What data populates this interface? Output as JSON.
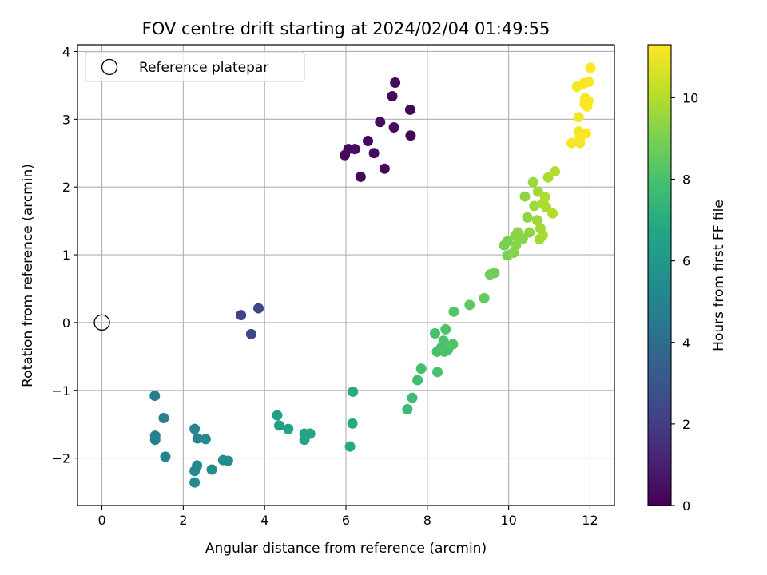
{
  "chart_data": {
    "type": "scatter",
    "title": "FOV centre drift starting at 2024/02/04 01:49:55",
    "xlabel": "Angular distance from reference (arcmin)",
    "ylabel": "Rotation from reference (arcmin)",
    "xlim": [
      -0.6,
      12.6
    ],
    "ylim": [
      -2.7,
      4.1
    ],
    "x_ticks": [
      0,
      2,
      4,
      6,
      8,
      10,
      12
    ],
    "y_ticks": [
      -2,
      -1,
      0,
      1,
      2,
      3,
      4
    ],
    "grid": true,
    "legend": {
      "position": "top-left",
      "entries": [
        "Reference platepar"
      ]
    },
    "reference_point": {
      "name": "Reference platepar",
      "x": 0,
      "y": 0,
      "marker": "open-circle"
    },
    "colorbar": {
      "label": "Hours from first FF file",
      "range": [
        0,
        11.3
      ],
      "ticks": [
        0,
        2,
        4,
        6,
        8,
        10
      ],
      "colormap": "viridis"
    },
    "points": [
      {
        "x": 5.97,
        "y": 2.47,
        "c": 0.2
      },
      {
        "x": 6.06,
        "y": 2.56,
        "c": 0.3
      },
      {
        "x": 6.22,
        "y": 2.56,
        "c": 0.4
      },
      {
        "x": 6.36,
        "y": 2.15,
        "c": 0.3
      },
      {
        "x": 6.54,
        "y": 2.68,
        "c": 0.2
      },
      {
        "x": 6.69,
        "y": 2.5,
        "c": 0.3
      },
      {
        "x": 6.84,
        "y": 2.96,
        "c": 0.4
      },
      {
        "x": 6.95,
        "y": 2.27,
        "c": 0.3
      },
      {
        "x": 7.14,
        "y": 3.34,
        "c": 0.2
      },
      {
        "x": 7.18,
        "y": 2.88,
        "c": 0.4
      },
      {
        "x": 7.21,
        "y": 3.54,
        "c": 0.3
      },
      {
        "x": 7.58,
        "y": 3.14,
        "c": 0.2
      },
      {
        "x": 7.59,
        "y": 2.76,
        "c": 0.1
      },
      {
        "x": 3.42,
        "y": 0.11,
        "c": 2.2
      },
      {
        "x": 3.85,
        "y": 0.21,
        "c": 2.3
      },
      {
        "x": 3.67,
        "y": -0.17,
        "c": 2.4
      },
      {
        "x": 1.3,
        "y": -1.08,
        "c": 4.8
      },
      {
        "x": 1.31,
        "y": -1.67,
        "c": 4.9
      },
      {
        "x": 1.31,
        "y": -1.73,
        "c": 4.9
      },
      {
        "x": 1.52,
        "y": -1.41,
        "c": 5.0
      },
      {
        "x": 1.56,
        "y": -1.98,
        "c": 5.0
      },
      {
        "x": 2.28,
        "y": -1.57,
        "c": 5.2
      },
      {
        "x": 2.35,
        "y": -1.71,
        "c": 5.2
      },
      {
        "x": 2.55,
        "y": -1.72,
        "c": 5.3
      },
      {
        "x": 2.28,
        "y": -2.19,
        "c": 5.3
      },
      {
        "x": 2.34,
        "y": -2.11,
        "c": 5.3
      },
      {
        "x": 2.28,
        "y": -2.36,
        "c": 5.4
      },
      {
        "x": 2.7,
        "y": -2.17,
        "c": 5.5
      },
      {
        "x": 2.98,
        "y": -2.03,
        "c": 5.6
      },
      {
        "x": 3.1,
        "y": -2.04,
        "c": 5.6
      },
      {
        "x": 4.31,
        "y": -1.37,
        "c": 6.4
      },
      {
        "x": 4.36,
        "y": -1.52,
        "c": 6.4
      },
      {
        "x": 4.58,
        "y": -1.57,
        "c": 6.5
      },
      {
        "x": 4.98,
        "y": -1.64,
        "c": 6.6
      },
      {
        "x": 4.98,
        "y": -1.73,
        "c": 6.6
      },
      {
        "x": 5.12,
        "y": -1.64,
        "c": 6.7
      },
      {
        "x": 6.17,
        "y": -1.02,
        "c": 6.9
      },
      {
        "x": 6.16,
        "y": -1.49,
        "c": 6.9
      },
      {
        "x": 6.1,
        "y": -1.83,
        "c": 6.9
      },
      {
        "x": 7.51,
        "y": -1.28,
        "c": 7.6
      },
      {
        "x": 7.63,
        "y": -1.11,
        "c": 7.7
      },
      {
        "x": 7.76,
        "y": -0.85,
        "c": 7.8
      },
      {
        "x": 7.85,
        "y": -0.68,
        "c": 7.9
      },
      {
        "x": 8.19,
        "y": -0.16,
        "c": 8.0
      },
      {
        "x": 8.24,
        "y": -0.43,
        "c": 8.0
      },
      {
        "x": 8.25,
        "y": -0.73,
        "c": 8.0
      },
      {
        "x": 8.34,
        "y": -0.37,
        "c": 8.0
      },
      {
        "x": 8.4,
        "y": -0.27,
        "c": 8.1
      },
      {
        "x": 8.45,
        "y": -0.1,
        "c": 8.1
      },
      {
        "x": 8.42,
        "y": -0.43,
        "c": 8.1
      },
      {
        "x": 8.51,
        "y": -0.4,
        "c": 8.1
      },
      {
        "x": 8.63,
        "y": -0.32,
        "c": 8.2
      },
      {
        "x": 8.65,
        "y": 0.16,
        "c": 8.3
      },
      {
        "x": 9.04,
        "y": 0.26,
        "c": 8.5
      },
      {
        "x": 9.4,
        "y": 0.36,
        "c": 8.6
      },
      {
        "x": 9.54,
        "y": 0.71,
        "c": 8.8
      },
      {
        "x": 9.65,
        "y": 0.73,
        "c": 8.8
      },
      {
        "x": 9.89,
        "y": 1.14,
        "c": 9.0
      },
      {
        "x": 9.97,
        "y": 0.99,
        "c": 9.0
      },
      {
        "x": 9.97,
        "y": 1.2,
        "c": 9.0
      },
      {
        "x": 10.12,
        "y": 1.03,
        "c": 9.2
      },
      {
        "x": 10.16,
        "y": 1.28,
        "c": 9.3
      },
      {
        "x": 10.18,
        "y": 1.14,
        "c": 9.3
      },
      {
        "x": 10.22,
        "y": 1.33,
        "c": 9.3
      },
      {
        "x": 10.35,
        "y": 1.24,
        "c": 9.3
      },
      {
        "x": 10.4,
        "y": 1.86,
        "c": 9.4
      },
      {
        "x": 10.46,
        "y": 1.55,
        "c": 9.4
      },
      {
        "x": 10.51,
        "y": 1.33,
        "c": 9.4
      },
      {
        "x": 10.6,
        "y": 2.07,
        "c": 9.6
      },
      {
        "x": 10.63,
        "y": 1.72,
        "c": 9.6
      },
      {
        "x": 10.7,
        "y": 1.51,
        "c": 9.6
      },
      {
        "x": 10.72,
        "y": 1.93,
        "c": 9.7
      },
      {
        "x": 10.78,
        "y": 1.39,
        "c": 9.7
      },
      {
        "x": 10.76,
        "y": 1.23,
        "c": 9.7
      },
      {
        "x": 10.84,
        "y": 1.29,
        "c": 9.8
      },
      {
        "x": 10.85,
        "y": 1.76,
        "c": 9.8
      },
      {
        "x": 10.9,
        "y": 1.85,
        "c": 9.9
      },
      {
        "x": 10.92,
        "y": 1.7,
        "c": 9.9
      },
      {
        "x": 10.97,
        "y": 2.14,
        "c": 9.9
      },
      {
        "x": 11.08,
        "y": 1.61,
        "c": 10.0
      },
      {
        "x": 11.14,
        "y": 2.23,
        "c": 10.0
      },
      {
        "x": 11.55,
        "y": 2.65,
        "c": 11.1
      },
      {
        "x": 11.68,
        "y": 3.48,
        "c": 11.1
      },
      {
        "x": 11.72,
        "y": 3.03,
        "c": 11.1
      },
      {
        "x": 11.72,
        "y": 2.82,
        "c": 11.1
      },
      {
        "x": 11.75,
        "y": 2.65,
        "c": 11.2
      },
      {
        "x": 11.76,
        "y": 2.73,
        "c": 11.2
      },
      {
        "x": 11.85,
        "y": 3.53,
        "c": 11.2
      },
      {
        "x": 11.87,
        "y": 3.23,
        "c": 11.2
      },
      {
        "x": 11.88,
        "y": 3.31,
        "c": 11.2
      },
      {
        "x": 11.9,
        "y": 2.79,
        "c": 11.3
      },
      {
        "x": 11.93,
        "y": 3.19,
        "c": 11.3
      },
      {
        "x": 11.96,
        "y": 3.27,
        "c": 11.3
      },
      {
        "x": 11.97,
        "y": 3.55,
        "c": 11.3
      },
      {
        "x": 12.01,
        "y": 3.76,
        "c": 11.3
      }
    ]
  }
}
